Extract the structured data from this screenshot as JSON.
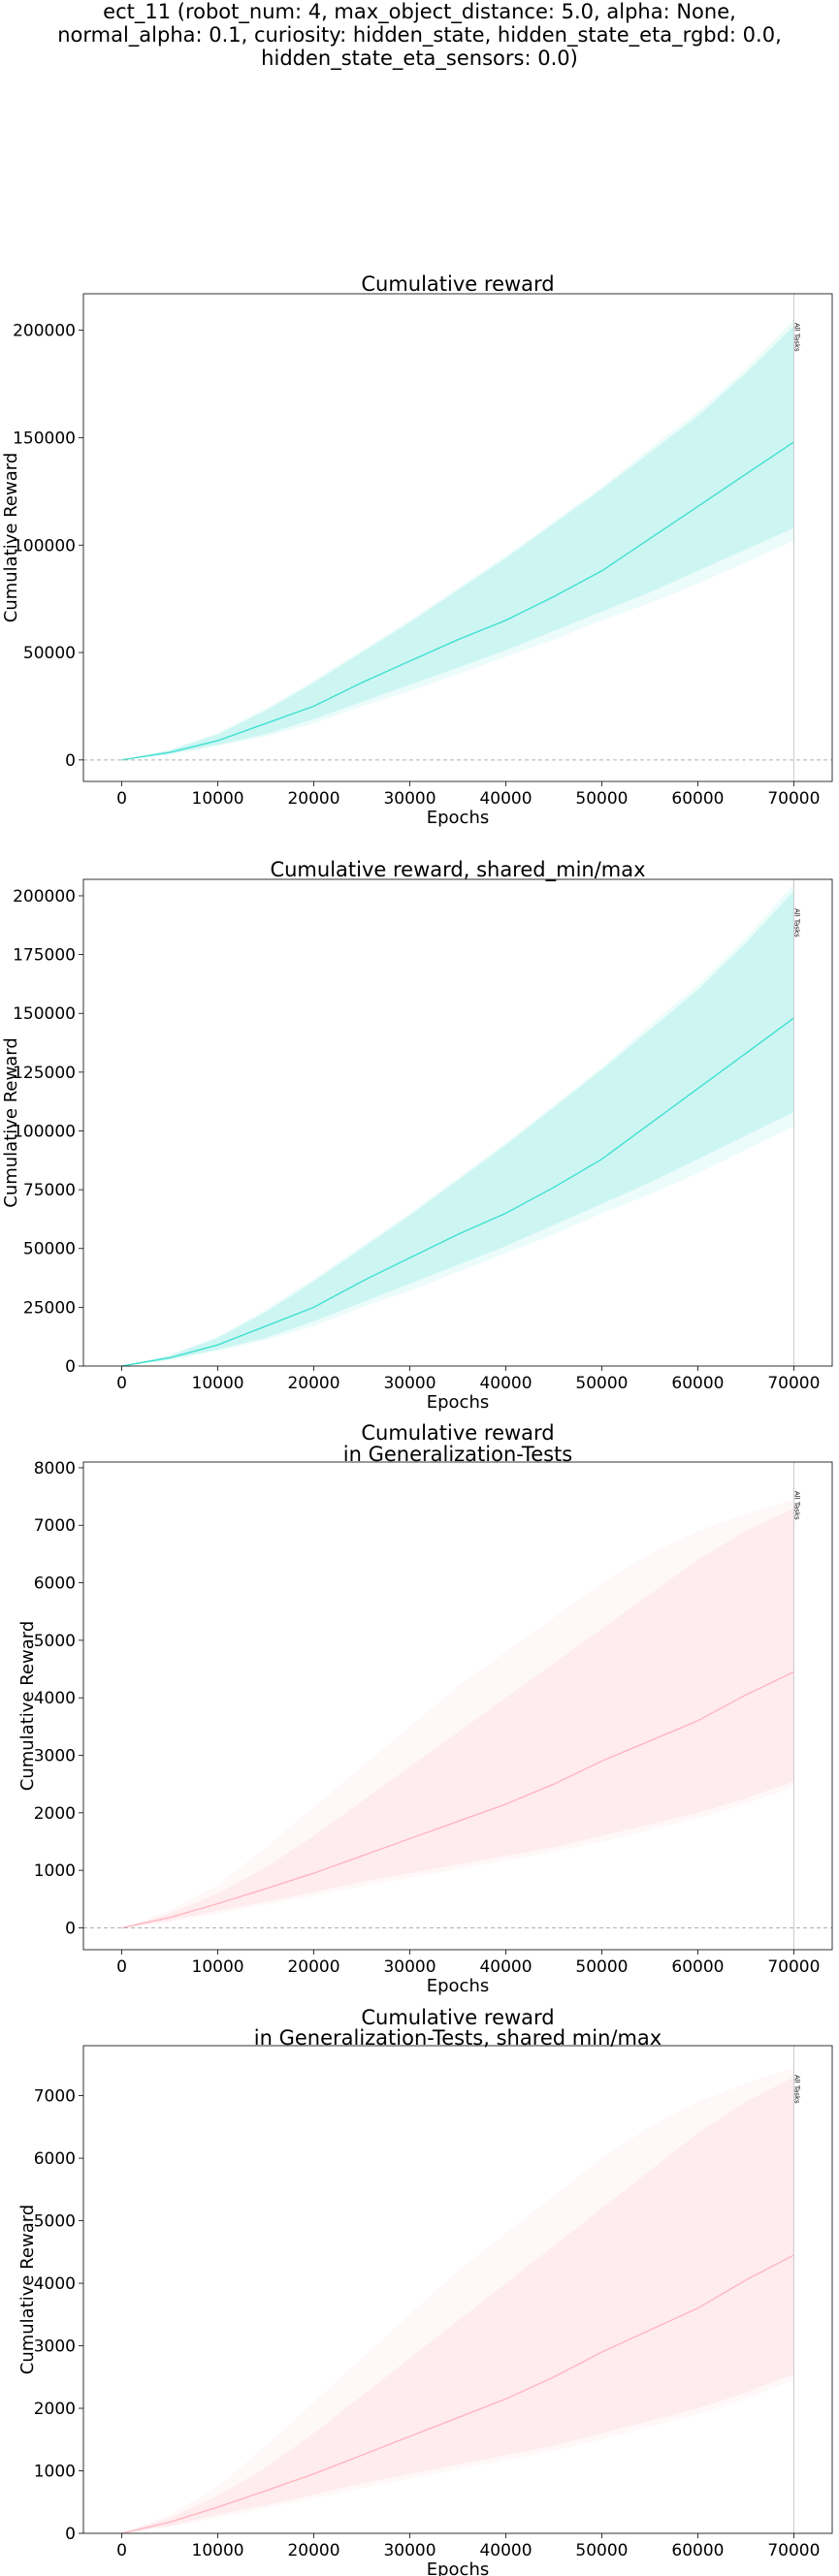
{
  "figure": {
    "suptitle_lines": [
      "ect_11 (robot_num: 4, max_object_distance: 5.0, alpha: None,",
      "normal_alpha: 0.1, curiosity: hidden_state, hidden_state_eta_rgbd: 0.0,",
      "hidden_state_eta_sensors: 0.0)"
    ]
  },
  "chart_data": [
    {
      "type": "line",
      "title": "Cumulative reward",
      "xlabel": "Epochs",
      "ylabel": "Cumulative Reward",
      "xlim": [
        -4000,
        74000
      ],
      "ylim": [
        -10000,
        217000
      ],
      "xticks": [
        0,
        10000,
        20000,
        30000,
        40000,
        50000,
        60000,
        70000
      ],
      "yticks": [
        0,
        50000,
        100000,
        150000,
        200000
      ],
      "zero_line": true,
      "vline": {
        "x": 70000,
        "label": "All Tasks"
      },
      "color": "#40e0d0",
      "series": [
        {
          "x": [
            0,
            5000,
            10000,
            15000,
            20000,
            25000,
            30000,
            35000,
            40000,
            45000,
            50000,
            55000,
            60000,
            65000,
            70000
          ],
          "mean": [
            0,
            3500,
            9000,
            17000,
            25000,
            36000,
            46000,
            56000,
            65000,
            76000,
            88000,
            103000,
            118000,
            133000,
            148000
          ],
          "lower": [
            0,
            2800,
            7000,
            12000,
            19000,
            27000,
            35000,
            43000,
            51000,
            60000,
            69000,
            78000,
            88000,
            98000,
            108000
          ],
          "upper": [
            0,
            4500,
            12000,
            23000,
            36000,
            50000,
            64000,
            79000,
            94000,
            110000,
            126000,
            143000,
            160000,
            180000,
            202000
          ],
          "outer_lower": [
            0,
            2600,
            6500,
            11000,
            17000,
            25000,
            32000,
            40000,
            48000,
            56000,
            65000,
            73000,
            82000,
            92000,
            102000
          ],
          "outer_upper": [
            0,
            4700,
            12500,
            24000,
            37000,
            51000,
            65000,
            80000,
            95000,
            111000,
            127000,
            145000,
            162000,
            182000,
            205000
          ]
        }
      ]
    },
    {
      "type": "line",
      "title": "Cumulative reward, shared_min/max",
      "xlabel": "Epochs",
      "ylabel": "Cumulative Reward",
      "xlim": [
        -4000,
        74000
      ],
      "ylim": [
        0,
        207000
      ],
      "xticks": [
        0,
        10000,
        20000,
        30000,
        40000,
        50000,
        60000,
        70000
      ],
      "yticks": [
        0,
        25000,
        50000,
        75000,
        100000,
        125000,
        150000,
        175000,
        200000
      ],
      "zero_line": false,
      "vline": {
        "x": 70000,
        "label": "All Tasks"
      },
      "color": "#40e0d0",
      "series": [
        {
          "x": [
            0,
            5000,
            10000,
            15000,
            20000,
            25000,
            30000,
            35000,
            40000,
            45000,
            50000,
            55000,
            60000,
            65000,
            70000
          ],
          "mean": [
            0,
            3500,
            9000,
            17000,
            25000,
            36000,
            46000,
            56000,
            65000,
            76000,
            88000,
            103000,
            118000,
            133000,
            148000
          ],
          "lower": [
            0,
            2800,
            7000,
            12000,
            19000,
            27000,
            35000,
            43000,
            51000,
            60000,
            69000,
            78000,
            88000,
            98000,
            108000
          ],
          "upper": [
            0,
            4500,
            12000,
            23000,
            36000,
            50000,
            64000,
            79000,
            94000,
            110000,
            126000,
            143000,
            160000,
            180000,
            202000
          ],
          "outer_lower": [
            0,
            2600,
            6500,
            11000,
            17000,
            25000,
            32000,
            40000,
            48000,
            56000,
            65000,
            73000,
            82000,
            92000,
            102000
          ],
          "outer_upper": [
            0,
            4700,
            12500,
            24000,
            37000,
            51000,
            65000,
            80000,
            95000,
            111000,
            127000,
            145000,
            162000,
            182000,
            205000
          ]
        }
      ]
    },
    {
      "type": "line",
      "title": "Cumulative reward\nin Generalization-Tests",
      "xlabel": "Epochs",
      "ylabel": "Cumulative Reward",
      "xlim": [
        -4000,
        74000
      ],
      "ylim": [
        -380,
        8100
      ],
      "xticks": [
        0,
        10000,
        20000,
        30000,
        40000,
        50000,
        60000,
        70000
      ],
      "yticks": [
        0,
        1000,
        2000,
        3000,
        4000,
        5000,
        6000,
        7000,
        8000
      ],
      "zero_line": true,
      "vline": {
        "x": 70000,
        "label": "All Tasks"
      },
      "color": "#ffb6c1",
      "series": [
        {
          "x": [
            0,
            5000,
            10000,
            15000,
            20000,
            25000,
            30000,
            35000,
            40000,
            45000,
            50000,
            55000,
            60000,
            65000,
            70000
          ],
          "mean": [
            0,
            180,
            420,
            680,
            950,
            1250,
            1550,
            1850,
            2150,
            2500,
            2900,
            3250,
            3600,
            4050,
            4450
          ],
          "lower": [
            0,
            120,
            300,
            450,
            620,
            800,
            950,
            1100,
            1250,
            1400,
            1600,
            1800,
            2000,
            2250,
            2550
          ],
          "upper": [
            0,
            250,
            600,
            1050,
            1600,
            2200,
            2800,
            3400,
            4000,
            4600,
            5200,
            5800,
            6400,
            6900,
            7300
          ],
          "outer_lower": [
            0,
            100,
            250,
            400,
            560,
            720,
            870,
            1020,
            1170,
            1320,
            1500,
            1700,
            1900,
            2150,
            2450
          ],
          "outer_upper": [
            0,
            300,
            750,
            1400,
            2100,
            2800,
            3500,
            4200,
            4800,
            5400,
            6000,
            6500,
            6900,
            7200,
            7450
          ]
        }
      ]
    },
    {
      "type": "line",
      "title": "Cumulative reward\nin Generalization-Tests, shared min/max",
      "xlabel": "Epochs",
      "ylabel": "Cumulative Reward",
      "xlim": [
        -4000,
        74000
      ],
      "ylim": [
        0,
        7800
      ],
      "xticks": [
        0,
        10000,
        20000,
        30000,
        40000,
        50000,
        60000,
        70000
      ],
      "yticks": [
        0,
        1000,
        2000,
        3000,
        4000,
        5000,
        6000,
        7000
      ],
      "zero_line": false,
      "vline": {
        "x": 70000,
        "label": "All Tasks"
      },
      "color": "#ffb6c1",
      "series": [
        {
          "x": [
            0,
            5000,
            10000,
            15000,
            20000,
            25000,
            30000,
            35000,
            40000,
            45000,
            50000,
            55000,
            60000,
            65000,
            70000
          ],
          "mean": [
            0,
            180,
            420,
            680,
            950,
            1250,
            1550,
            1850,
            2150,
            2500,
            2900,
            3250,
            3600,
            4050,
            4450
          ],
          "lower": [
            0,
            120,
            300,
            450,
            620,
            800,
            950,
            1100,
            1250,
            1400,
            1600,
            1800,
            2000,
            2250,
            2550
          ],
          "upper": [
            0,
            250,
            600,
            1050,
            1600,
            2200,
            2800,
            3400,
            4000,
            4600,
            5200,
            5800,
            6400,
            6900,
            7300
          ],
          "outer_lower": [
            0,
            100,
            250,
            400,
            560,
            720,
            870,
            1020,
            1170,
            1320,
            1500,
            1700,
            1900,
            2150,
            2450
          ],
          "outer_upper": [
            0,
            300,
            750,
            1400,
            2100,
            2800,
            3500,
            4200,
            4800,
            5400,
            6000,
            6500,
            6900,
            7200,
            7450
          ]
        }
      ]
    }
  ]
}
